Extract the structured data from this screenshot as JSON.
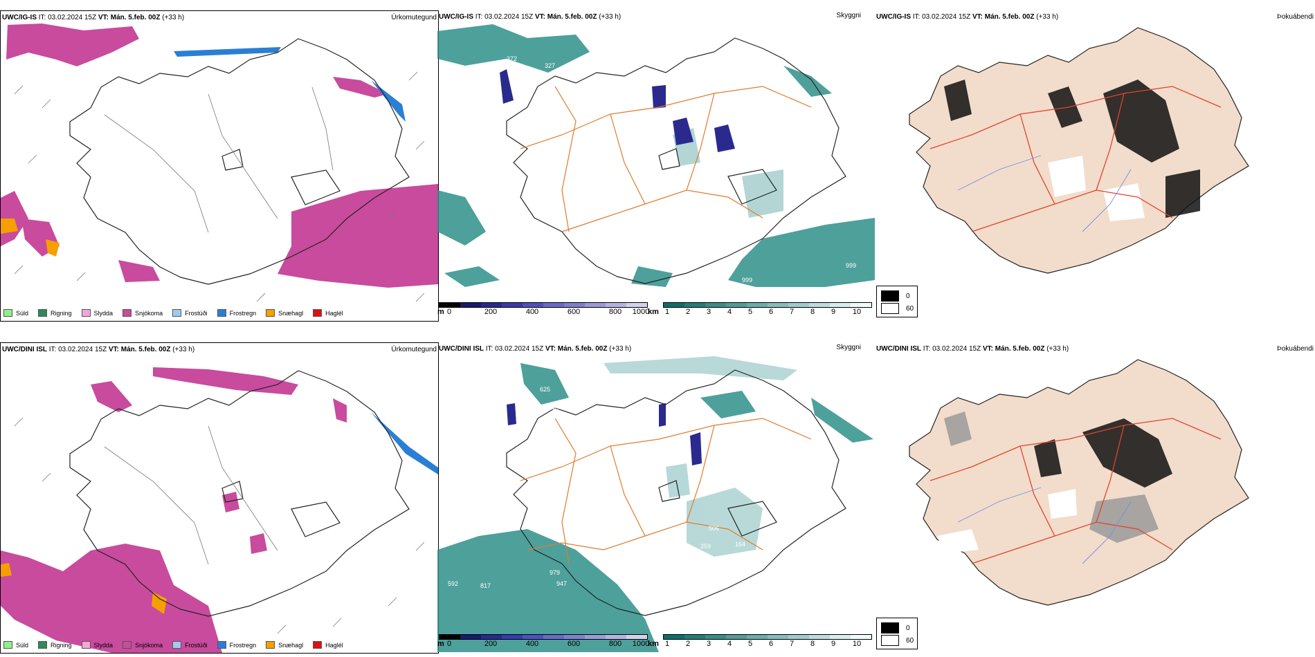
{
  "rows": [
    {
      "model": "UWC/IG-IS",
      "it_label": "IT:",
      "it_value": "03.02.2024 15Z",
      "vt_label": "VT:",
      "vt_value": "Mán. 5.feb. 00Z",
      "lead": "(+33 h)",
      "panels": [
        "Úrkomutegund",
        "Skyggni",
        "Þokuábendi"
      ]
    },
    {
      "model": "UWC/DINI ISL",
      "it_label": "IT:",
      "it_value": "03.02.2024 15Z",
      "vt_label": "VT:",
      "vt_value": "Mán. 5.feb. 00Z",
      "lead": "(+33 h)",
      "panels": [
        "Úrkomutegund",
        "Skyggni",
        "Þokuábendi"
      ]
    }
  ],
  "precip_legend": [
    {
      "label": "Súld",
      "color": "#8ef08e"
    },
    {
      "label": "Rigning",
      "color": "#2e8b57"
    },
    {
      "label": "Slydda",
      "color": "#f4a6d8"
    },
    {
      "label": "Snjókoma",
      "color": "#c84b9e"
    },
    {
      "label": "Frostúði",
      "color": "#9ecbf0"
    },
    {
      "label": "Frostregn",
      "color": "#2a7fd4"
    },
    {
      "label": "Snæhagl",
      "color": "#f5a000"
    },
    {
      "label": "Haglél",
      "color": "#e01010"
    }
  ],
  "vis_m_bar": {
    "unit": "m",
    "ticks": [
      "0",
      "200",
      "400",
      "600",
      "800",
      "1000"
    ],
    "colors": [
      "#000000",
      "#1a1a6e",
      "#2a2a8e",
      "#3a3ab0",
      "#5050c0",
      "#6a6ac8",
      "#8080d0",
      "#9a9ad8",
      "#b4b4e2",
      "#d2d2ee"
    ]
  },
  "vis_km_bar": {
    "unit": "km",
    "ticks": [
      "1",
      "2",
      "3",
      "4",
      "5",
      "6",
      "7",
      "8",
      "9",
      "10"
    ],
    "colors": [
      "#0e6e6a",
      "#267c78",
      "#3c8c88",
      "#549c98",
      "#6cacaa",
      "#86bcba",
      "#a0cccb",
      "#bcdddc",
      "#d8eeee",
      "#f2fafa"
    ]
  },
  "fog_legend": [
    {
      "value": "0",
      "color": "#000000"
    },
    {
      "value": "60",
      "color": "#ffffff"
    }
  ],
  "vis_labels_top": [
    "372",
    "327",
    "999",
    "999"
  ],
  "vis_labels_bottom": [
    "625",
    "940",
    "506",
    "259",
    "164",
    "979",
    "947",
    "592",
    "817"
  ]
}
